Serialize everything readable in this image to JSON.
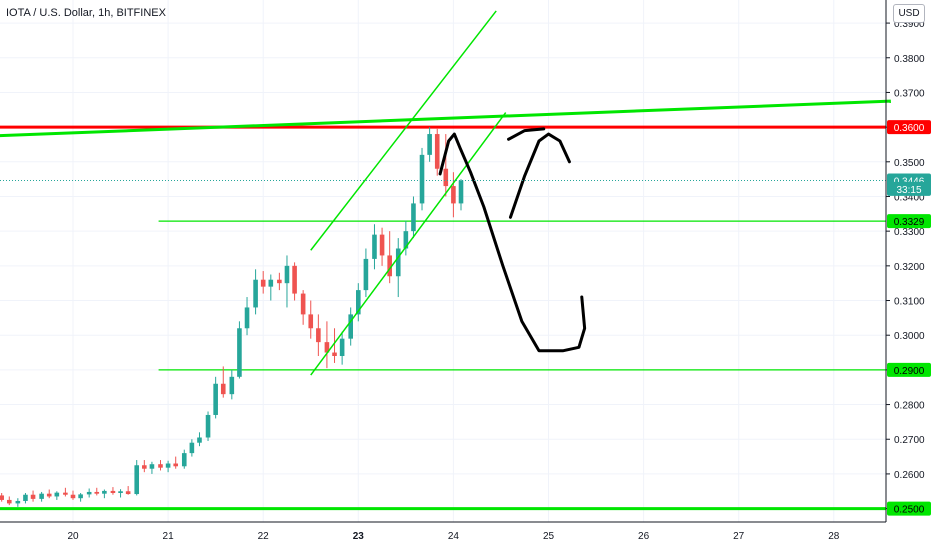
{
  "header": {
    "title": "IOTA / U.S. Dollar, 1h, BITFINEX",
    "currency_button": "USD"
  },
  "colors": {
    "up_candle": "#26a69a",
    "down_candle": "#ef5350",
    "trendline": "#00e600",
    "resistance": "#ff0000",
    "drawing": "#000000",
    "axis_text": "#131722"
  },
  "chart_data": {
    "type": "candlestick",
    "title": "IOTA / U.S. Dollar, 1h, BITFINEX",
    "x_ticks": [
      "20",
      "21",
      "22",
      "23",
      "24",
      "25",
      "26",
      "27",
      "28"
    ],
    "x_tick_values": [
      20,
      21,
      22,
      23,
      24,
      25,
      26,
      27,
      28
    ],
    "y_ticks": [
      "0.2500",
      "0.2600",
      "0.2700",
      "0.2800",
      "0.2900",
      "0.3000",
      "0.3100",
      "0.3200",
      "0.3300",
      "0.3400",
      "0.3500",
      "0.3600",
      "0.3700",
      "0.3800",
      "0.3900"
    ],
    "ylim": [
      0.2485,
      0.392
    ],
    "xlim": [
      19.2,
      28.6
    ],
    "grid": true,
    "price_labels": [
      {
        "text": "0.3600",
        "value": 0.36,
        "bg": "#ff0000",
        "fg": "#ffffff"
      },
      {
        "text": "0.3446",
        "value": 0.3446,
        "bg": "#26a69a",
        "fg": "#ffffff"
      },
      {
        "text": "33:15",
        "value": 0.3422,
        "bg": "#26a69a",
        "fg": "#ffffff"
      },
      {
        "text": "0.3329",
        "value": 0.3329,
        "bg": "#00e600",
        "fg": "#000000"
      },
      {
        "text": "0.2900",
        "value": 0.29,
        "bg": "#00e600",
        "fg": "#000000"
      },
      {
        "text": "0.2500",
        "value": 0.25,
        "bg": "#00e600",
        "fg": "#000000"
      }
    ],
    "horizontal_levels": [
      {
        "name": "support-0.3329",
        "value": 0.3329,
        "x_start": 20.9,
        "color": "#00e600",
        "width": 1.2
      },
      {
        "name": "support-0.2900",
        "value": 0.29,
        "x_start": 20.9,
        "color": "#00e600",
        "width": 1.2
      },
      {
        "name": "support-0.2500",
        "value": 0.25,
        "x_start": 19.2,
        "color": "#00e600",
        "width": 3
      },
      {
        "name": "resistance-0.3600",
        "value": 0.36,
        "x_start": 19.2,
        "color": "#ff0000",
        "width": 3
      }
    ],
    "trendlines": [
      {
        "name": "rising-trendline",
        "from": [
          19.2,
          0.3575
        ],
        "to": [
          28.6,
          0.3675
        ],
        "color": "#00e600",
        "width": 3
      },
      {
        "name": "channel-upper",
        "from": [
          22.5,
          0.3245
        ],
        "to": [
          24.45,
          0.3935
        ],
        "color": "#00e600",
        "width": 1.5
      },
      {
        "name": "channel-lower",
        "from": [
          22.5,
          0.2885
        ],
        "to": [
          24.55,
          0.3642
        ],
        "color": "#00e600",
        "width": 1.5
      }
    ],
    "last_price": 0.3446,
    "candles": [
      [
        19.25,
        0.2538,
        0.2545,
        0.252,
        0.2525
      ],
      [
        19.33,
        0.2525,
        0.2535,
        0.251,
        0.2515
      ],
      [
        19.42,
        0.2515,
        0.253,
        0.2505,
        0.2522
      ],
      [
        19.5,
        0.2522,
        0.2545,
        0.2515,
        0.254
      ],
      [
        19.58,
        0.254,
        0.2552,
        0.252,
        0.2528
      ],
      [
        19.67,
        0.2528,
        0.2548,
        0.252,
        0.2543
      ],
      [
        19.75,
        0.2543,
        0.2555,
        0.253,
        0.2535
      ],
      [
        19.83,
        0.2535,
        0.255,
        0.2525,
        0.2546
      ],
      [
        19.92,
        0.2546,
        0.256,
        0.2535,
        0.254
      ],
      [
        20.0,
        0.254,
        0.2552,
        0.2525,
        0.253
      ],
      [
        20.08,
        0.253,
        0.2545,
        0.252,
        0.2541
      ],
      [
        20.17,
        0.2541,
        0.2558,
        0.2532,
        0.2548
      ],
      [
        20.25,
        0.2548,
        0.256,
        0.2538,
        0.2543
      ],
      [
        20.33,
        0.2543,
        0.2555,
        0.253,
        0.2551
      ],
      [
        20.42,
        0.2551,
        0.2562,
        0.254,
        0.2545
      ],
      [
        20.5,
        0.2545,
        0.2556,
        0.2532,
        0.255
      ],
      [
        20.58,
        0.255,
        0.2565,
        0.254,
        0.2542
      ],
      [
        20.67,
        0.2542,
        0.264,
        0.2538,
        0.2625
      ],
      [
        20.75,
        0.2625,
        0.264,
        0.2605,
        0.2615
      ],
      [
        20.83,
        0.2615,
        0.2635,
        0.26,
        0.2628
      ],
      [
        20.92,
        0.2628,
        0.264,
        0.261,
        0.2618
      ],
      [
        21.0,
        0.2618,
        0.2638,
        0.2605,
        0.263
      ],
      [
        21.08,
        0.263,
        0.265,
        0.2615,
        0.2622
      ],
      [
        21.17,
        0.2622,
        0.267,
        0.2615,
        0.266
      ],
      [
        21.25,
        0.266,
        0.27,
        0.265,
        0.269
      ],
      [
        21.33,
        0.269,
        0.272,
        0.268,
        0.2705
      ],
      [
        21.42,
        0.2705,
        0.278,
        0.2695,
        0.277
      ],
      [
        21.5,
        0.277,
        0.288,
        0.276,
        0.286
      ],
      [
        21.58,
        0.286,
        0.291,
        0.282,
        0.283
      ],
      [
        21.67,
        0.283,
        0.29,
        0.2815,
        0.288
      ],
      [
        21.75,
        0.288,
        0.304,
        0.2875,
        0.302
      ],
      [
        21.83,
        0.302,
        0.311,
        0.3,
        0.308
      ],
      [
        21.92,
        0.308,
        0.319,
        0.306,
        0.316
      ],
      [
        22.0,
        0.316,
        0.3185,
        0.312,
        0.314
      ],
      [
        22.08,
        0.314,
        0.3175,
        0.31,
        0.316
      ],
      [
        22.17,
        0.316,
        0.318,
        0.313,
        0.315
      ],
      [
        22.25,
        0.315,
        0.323,
        0.308,
        0.32
      ],
      [
        22.33,
        0.32,
        0.321,
        0.31,
        0.312
      ],
      [
        22.42,
        0.312,
        0.313,
        0.303,
        0.306
      ],
      [
        22.5,
        0.306,
        0.31,
        0.299,
        0.302
      ],
      [
        22.58,
        0.302,
        0.306,
        0.294,
        0.298
      ],
      [
        22.67,
        0.298,
        0.304,
        0.2905,
        0.295
      ],
      [
        22.75,
        0.295,
        0.302,
        0.292,
        0.294
      ],
      [
        22.83,
        0.294,
        0.301,
        0.2915,
        0.299
      ],
      [
        22.92,
        0.299,
        0.308,
        0.297,
        0.306
      ],
      [
        23.0,
        0.306,
        0.315,
        0.304,
        0.313
      ],
      [
        23.08,
        0.313,
        0.325,
        0.311,
        0.322
      ],
      [
        23.17,
        0.322,
        0.332,
        0.319,
        0.329
      ],
      [
        23.25,
        0.329,
        0.331,
        0.32,
        0.323
      ],
      [
        23.33,
        0.323,
        0.33,
        0.315,
        0.317
      ],
      [
        23.42,
        0.317,
        0.328,
        0.311,
        0.325
      ],
      [
        23.5,
        0.325,
        0.333,
        0.323,
        0.33
      ],
      [
        23.58,
        0.33,
        0.34,
        0.328,
        0.338
      ],
      [
        23.67,
        0.338,
        0.354,
        0.336,
        0.352
      ],
      [
        23.75,
        0.352,
        0.36,
        0.35,
        0.358
      ],
      [
        23.83,
        0.358,
        0.3595,
        0.346,
        0.348
      ],
      [
        23.92,
        0.348,
        0.358,
        0.34,
        0.343
      ],
      [
        24.0,
        0.343,
        0.347,
        0.334,
        0.338
      ],
      [
        24.08,
        0.338,
        0.345,
        0.336,
        0.3446
      ]
    ],
    "annotation_paths": [
      {
        "name": "hand-drawn-arrow-up",
        "points": [
          [
            23.86,
            0.3465
          ],
          [
            23.95,
            0.356
          ],
          [
            24.01,
            0.358
          ],
          [
            24.07,
            0.354
          ],
          [
            24.18,
            0.347
          ],
          [
            24.32,
            0.337
          ],
          [
            24.52,
            0.32
          ],
          [
            24.72,
            0.304
          ],
          [
            24.9,
            0.2955
          ],
          [
            25.15,
            0.2955
          ],
          [
            25.32,
            0.2965
          ],
          [
            25.38,
            0.302
          ],
          [
            25.35,
            0.311
          ]
        ]
      },
      {
        "name": "hand-drawn-arrow-down",
        "points": [
          [
            24.6,
            0.334
          ],
          [
            24.75,
            0.346
          ],
          [
            24.9,
            0.356
          ],
          [
            25.0,
            0.358
          ],
          [
            25.12,
            0.356
          ],
          [
            25.22,
            0.35
          ]
        ]
      },
      {
        "name": "hand-drawn-peak-tick",
        "points": [
          [
            24.58,
            0.3565
          ],
          [
            24.75,
            0.359
          ],
          [
            24.95,
            0.3595
          ]
        ]
      }
    ]
  }
}
